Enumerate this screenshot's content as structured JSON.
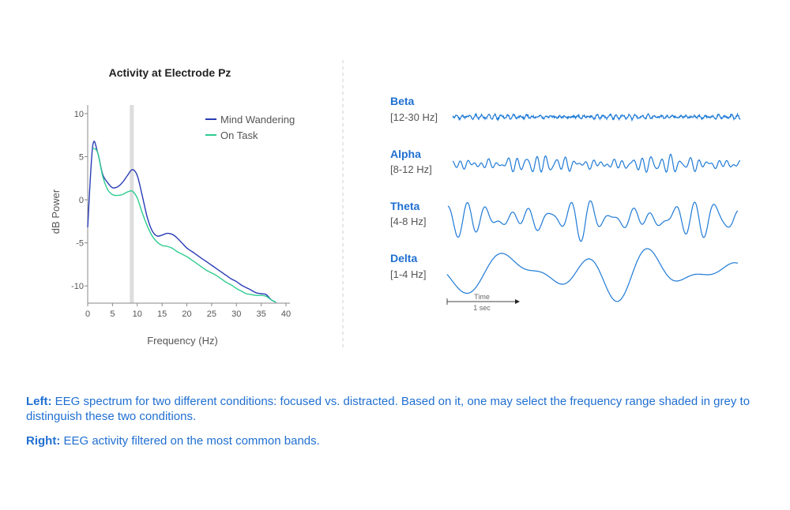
{
  "chart_data": [
    {
      "type": "line",
      "title": "Activity at Electrode Pz",
      "xlabel": "Frequency (Hz)",
      "ylabel": "dB Power",
      "xlim": [
        0,
        40
      ],
      "ylim": [
        -12,
        11
      ],
      "xticks": [
        0,
        5,
        10,
        15,
        20,
        25,
        30,
        35,
        40
      ],
      "yticks": [
        10,
        5,
        0,
        -5,
        -10
      ],
      "legend_position": "top-right",
      "shaded_band": [
        8.5,
        9.3
      ],
      "colors": {
        "mind_wandering": "#2a3cb5",
        "on_task": "#2ecc8f",
        "shade": "#dddddd"
      },
      "series": [
        {
          "name": "Mind Wandering",
          "x": [
            0,
            1,
            2,
            3,
            4,
            5,
            6,
            7,
            8,
            9,
            10,
            11,
            12,
            13,
            14,
            15,
            16,
            17,
            18,
            19,
            20,
            21,
            22,
            23,
            24,
            25,
            26,
            27,
            28,
            29,
            30,
            31,
            32,
            33,
            34,
            35,
            36,
            37,
            38
          ],
          "values": [
            -3.2,
            6.2,
            5.5,
            3.0,
            2.0,
            1.4,
            1.5,
            2.0,
            2.8,
            3.5,
            2.8,
            0.5,
            -2.0,
            -3.6,
            -4.2,
            -4.1,
            -3.9,
            -4.0,
            -4.4,
            -5.0,
            -5.6,
            -6.0,
            -6.4,
            -6.8,
            -7.2,
            -7.6,
            -8.0,
            -8.4,
            -8.8,
            -9.2,
            -9.5,
            -9.9,
            -10.2,
            -10.5,
            -10.8,
            -10.9,
            -11.0,
            -11.6,
            -11.9
          ]
        },
        {
          "name": "On Task",
          "x": [
            1,
            2,
            3,
            4,
            5,
            6,
            7,
            8,
            9,
            10,
            11,
            12,
            13,
            14,
            15,
            16,
            17,
            18,
            19,
            20,
            21,
            22,
            23,
            24,
            25,
            26,
            27,
            28,
            29,
            30,
            31,
            32,
            33,
            34,
            35,
            36,
            37,
            38
          ],
          "values": [
            6.0,
            5.5,
            2.8,
            1.2,
            0.6,
            0.5,
            0.6,
            0.9,
            1.0,
            0.2,
            -1.5,
            -3.0,
            -4.2,
            -4.9,
            -5.3,
            -5.4,
            -5.6,
            -6.0,
            -6.3,
            -6.6,
            -7.0,
            -7.4,
            -7.8,
            -8.2,
            -8.5,
            -8.8,
            -9.2,
            -9.6,
            -9.9,
            -10.3,
            -10.6,
            -10.9,
            -11.0,
            -11.1,
            -11.1,
            -11.2,
            -11.6,
            -11.9
          ]
        }
      ]
    },
    {
      "type": "line",
      "title": "",
      "bands": [
        {
          "name": "Beta",
          "range": "[12-30 Hz]",
          "cycles": 45,
          "amplitude": 0.25,
          "seed": 11
        },
        {
          "name": "Alpha",
          "range": "[8-12 Hz]",
          "cycles": 30,
          "amplitude": 0.6,
          "seed": 7
        },
        {
          "name": "Theta",
          "range": "[4-8 Hz]",
          "cycles": 14,
          "amplitude": 0.85,
          "seed": 3
        },
        {
          "name": "Delta",
          "range": "[1-4 Hz]",
          "cycles": 4,
          "amplitude": 1.0,
          "seed": 5
        }
      ],
      "time_label": "Time",
      "time_scale": "1 sec",
      "line_color": "#1f7ad6"
    }
  ],
  "captions": {
    "left_label": "Left:",
    "left_text": " EEG spectrum for two different conditions: focused vs. distracted. Based on it, one may select the frequency range shaded in grey to distinguish these two conditions.",
    "right_label": "Right:",
    "right_text": " EEG activity filtered on the most common bands."
  }
}
